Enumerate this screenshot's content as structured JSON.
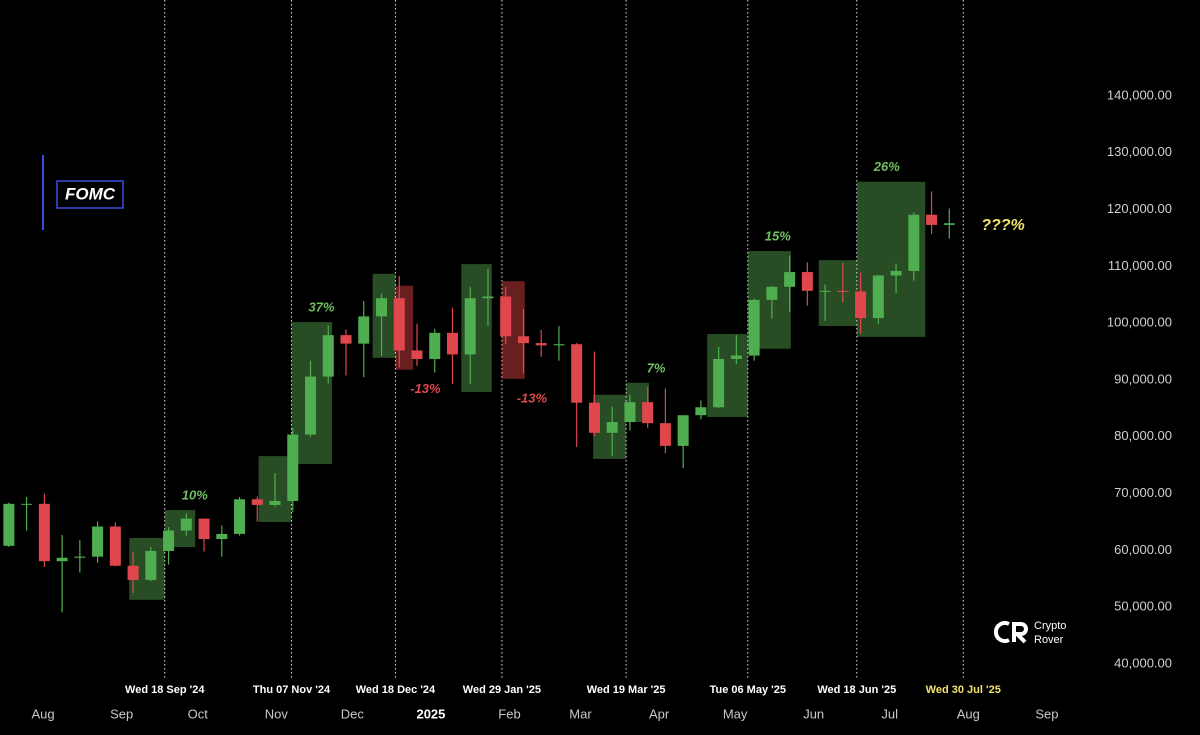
{
  "chart_data": {
    "type": "candlestick",
    "legend_label": "FOMC",
    "annotation": "???%",
    "watermark": [
      "Crypto",
      "Rover"
    ],
    "up_color": "#4fae4f",
    "down_color": "#e0474c",
    "x": [
      "2024-07-15",
      "2024-07-22",
      "2024-07-29",
      "2024-08-05",
      "2024-08-12",
      "2024-08-19",
      "2024-08-26",
      "2024-09-02",
      "2024-09-09",
      "2024-09-16",
      "2024-09-23",
      "2024-09-30",
      "2024-10-07",
      "2024-10-14",
      "2024-10-21",
      "2024-10-28",
      "2024-11-04",
      "2024-11-11",
      "2024-11-18",
      "2024-11-25",
      "2024-12-02",
      "2024-12-09",
      "2024-12-16",
      "2024-12-23",
      "2024-12-30",
      "2025-01-06",
      "2025-01-13",
      "2025-01-20",
      "2025-01-27",
      "2025-02-03",
      "2025-02-10",
      "2025-02-17",
      "2025-02-24",
      "2025-03-03",
      "2025-03-10",
      "2025-03-17",
      "2025-03-24",
      "2025-03-31",
      "2025-04-07",
      "2025-04-14",
      "2025-04-21",
      "2025-04-28",
      "2025-05-05",
      "2025-05-12",
      "2025-05-19",
      "2025-05-26",
      "2025-06-02",
      "2025-06-09",
      "2025-06-16",
      "2025-06-23",
      "2025-06-30",
      "2025-07-07",
      "2025-07-14",
      "2025-07-21"
    ],
    "open": [
      60800,
      68200,
      68200,
      58100,
      58700,
      58900,
      64200,
      57300,
      54800,
      59900,
      63500,
      65600,
      62000,
      62900,
      69000,
      68000,
      68700,
      80400,
      90600,
      97900,
      96400,
      101200,
      104400,
      95200,
      93700,
      98300,
      94500,
      104400,
      104700,
      97700,
      96500,
      96100,
      96300,
      86000,
      80700,
      82600,
      86100,
      82400,
      78400,
      83800,
      85200,
      93700,
      94300,
      104100,
      106400,
      109000,
      105700,
      105700,
      105600,
      100900,
      108400,
      109200,
      119100,
      117300
    ],
    "high": [
      68400,
      69400,
      70000,
      62700,
      61800,
      65100,
      64900,
      59800,
      60600,
      64100,
      66500,
      65600,
      64400,
      69400,
      69500,
      73600,
      81500,
      93400,
      99600,
      98900,
      103900,
      105200,
      108300,
      99900,
      99000,
      102700,
      106400,
      109600,
      106400,
      102500,
      98800,
      99500,
      96500,
      95000,
      85300,
      87400,
      88800,
      88500,
      83500,
      86400,
      95800,
      97900,
      104300,
      106600,
      111900,
      110700,
      106800,
      110600,
      108900,
      108500,
      110500,
      119500,
      123200,
      120200
    ],
    "low": [
      60600,
      63500,
      57100,
      49100,
      56100,
      57800,
      57200,
      52500,
      54600,
      57500,
      62600,
      59800,
      58900,
      62600,
      65100,
      67700,
      66800,
      80000,
      89400,
      90800,
      90500,
      94200,
      92200,
      92500,
      91300,
      89300,
      89300,
      99500,
      96300,
      91200,
      94100,
      93400,
      78200,
      80100,
      76600,
      81100,
      81600,
      77100,
      74500,
      83100,
      85100,
      92800,
      93400,
      100800,
      102000,
      103100,
      100400,
      103700,
      98200,
      99800,
      105300,
      107500,
      115700,
      114900
    ],
    "close": [
      68200,
      68200,
      58100,
      58700,
      58900,
      64200,
      57300,
      54800,
      59900,
      63500,
      65600,
      62000,
      62900,
      69000,
      68000,
      68700,
      80400,
      90600,
      97900,
      96400,
      101200,
      104400,
      95200,
      93700,
      98300,
      94500,
      104400,
      104700,
      97700,
      96500,
      96100,
      96300,
      86000,
      80700,
      82600,
      86100,
      82400,
      78400,
      83800,
      85200,
      93700,
      94300,
      104100,
      106400,
      109000,
      105700,
      105700,
      105600,
      100900,
      108400,
      109200,
      119100,
      117300,
      117600
    ],
    "xlim": [
      "2024-07-15",
      "2025-09-18"
    ],
    "xticks": [
      {
        "value": "2024-08-01",
        "label": "Aug"
      },
      {
        "value": "2024-09-01",
        "label": "Sep"
      },
      {
        "value": "2024-10-01",
        "label": "Oct"
      },
      {
        "value": "2024-11-01",
        "label": "Nov"
      },
      {
        "value": "2024-12-01",
        "label": "Dec"
      },
      {
        "value": "2025-01-01",
        "label": "2025"
      },
      {
        "value": "2025-02-01",
        "label": "Feb"
      },
      {
        "value": "2025-03-01",
        "label": "Mar"
      },
      {
        "value": "2025-04-01",
        "label": "Apr"
      },
      {
        "value": "2025-05-01",
        "label": "May"
      },
      {
        "value": "2025-06-01",
        "label": "Jun"
      },
      {
        "value": "2025-07-01",
        "label": "Jul"
      },
      {
        "value": "2025-08-01",
        "label": "Aug"
      },
      {
        "value": "2025-09-01",
        "label": "Sep"
      }
    ],
    "ylim": [
      27500,
      156900
    ],
    "yticks": [
      {
        "value": 40000,
        "label": "40,000.00"
      },
      {
        "value": 50000,
        "label": "50,000.00"
      },
      {
        "value": 60000,
        "label": "60,000.00"
      },
      {
        "value": 70000,
        "label": "70,000.00"
      },
      {
        "value": 80000,
        "label": "80,000.00"
      },
      {
        "value": 90000,
        "label": "90,000.00"
      },
      {
        "value": 100000,
        "label": "100,000.00"
      },
      {
        "value": 110000,
        "label": "110,000.00"
      },
      {
        "value": 120000,
        "label": "120,000.00"
      },
      {
        "value": 130000,
        "label": "130,000.00"
      },
      {
        "value": 140000,
        "label": "140,000.00"
      }
    ],
    "events": {
      "dates": [
        "2024-09-18",
        "2024-11-07",
        "2024-12-18",
        "2025-01-29",
        "2025-03-19",
        "2025-05-06",
        "2025-06-18",
        "2025-07-30"
      ],
      "labels": [
        "Wed 18 Sep '24",
        "Thu 07 Nov '24",
        "Wed 18 Dec '24",
        "Wed 29 Jan '25",
        "Wed 19 Mar '25",
        "Tue 06 May '25",
        "Wed 18 Jun '25",
        "Wed 30 Jul '25"
      ]
    },
    "fomc_boxes": [
      {
        "start": "2024-09-04",
        "end": "2024-09-18",
        "low": 51300,
        "high": 62200,
        "color": "#2f5a2a"
      },
      {
        "start": "2024-09-18",
        "end": "2024-09-30",
        "low": 60600,
        "high": 67100,
        "color": "#2f5a2a"
      },
      {
        "start": "2024-10-25",
        "end": "2024-11-07",
        "low": 65000,
        "high": 76600,
        "color": "#2f5a2a"
      },
      {
        "start": "2024-11-07",
        "end": "2024-11-23",
        "low": 75200,
        "high": 100200,
        "color": "#2f5a2a"
      },
      {
        "start": "2024-12-09",
        "end": "2024-12-18",
        "low": 93900,
        "high": 108700,
        "color": "#2f5a2a"
      },
      {
        "start": "2024-12-18",
        "end": "2024-12-25",
        "low": 91800,
        "high": 106600,
        "color": "#7a2424"
      },
      {
        "start": "2025-01-13",
        "end": "2025-01-25",
        "low": 87900,
        "high": 110400,
        "color": "#2f5a2a"
      },
      {
        "start": "2025-01-29",
        "end": "2025-02-07",
        "low": 90200,
        "high": 107400,
        "color": "#7a2424"
      },
      {
        "start": "2025-03-06",
        "end": "2025-03-19",
        "low": 76100,
        "high": 87400,
        "color": "#2f5a2a"
      },
      {
        "start": "2025-03-19",
        "end": "2025-03-28",
        "low": 82600,
        "high": 89500,
        "color": "#2f5a2a"
      },
      {
        "start": "2025-04-20",
        "end": "2025-05-06",
        "low": 83500,
        "high": 98100,
        "color": "#2f5a2a"
      },
      {
        "start": "2025-05-06",
        "end": "2025-05-23",
        "low": 95500,
        "high": 112700,
        "color": "#2f5a2a"
      },
      {
        "start": "2025-06-03",
        "end": "2025-06-18",
        "low": 99500,
        "high": 111100,
        "color": "#2f5a2a"
      },
      {
        "start": "2025-06-18",
        "end": "2025-07-15",
        "low": 97600,
        "high": 124900,
        "color": "#2f5a2a"
      }
    ],
    "moves": {
      "values": [
        10,
        37,
        -13,
        -13,
        7,
        15,
        26
      ],
      "value_labels": [
        "10%",
        "37%",
        "-13%",
        "-13%",
        "7%",
        "15%",
        "26%"
      ],
      "boxes": [
        1,
        3,
        5,
        7,
        9,
        11,
        13
      ]
    }
  }
}
